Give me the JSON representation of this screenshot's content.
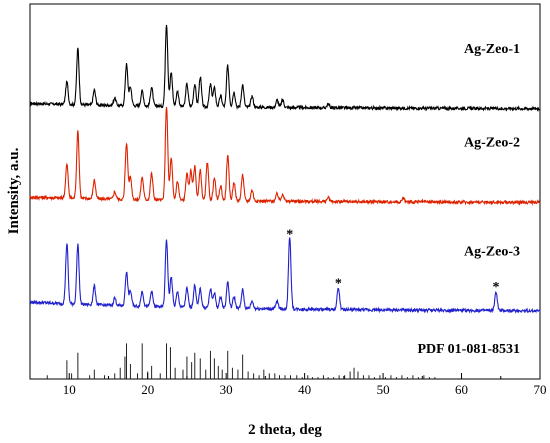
{
  "chart_data": {
    "type": "line",
    "xlabel": "2 theta, deg",
    "ylabel": "Intensity, a.u.",
    "xlim": [
      5,
      70
    ],
    "x_ticks": [
      10,
      20,
      30,
      40,
      50,
      60,
      70
    ],
    "x_tick_labels": [
      "10",
      "20",
      "30",
      "40",
      "50",
      "60",
      "70"
    ],
    "y_ticks_shown": false,
    "grid": false,
    "series": [
      {
        "name": "Ag-Zeo-1",
        "color": "#000000",
        "offset": 0.72,
        "baseline": 0.015,
        "peaks": [
          [
            9.7,
            0.06
          ],
          [
            11.1,
            0.15
          ],
          [
            13.2,
            0.04
          ],
          [
            15.8,
            0.02
          ],
          [
            17.3,
            0.11
          ],
          [
            17.8,
            0.05
          ],
          [
            19.3,
            0.04
          ],
          [
            20.5,
            0.05
          ],
          [
            22.4,
            0.22
          ],
          [
            23.0,
            0.09
          ],
          [
            23.8,
            0.04
          ],
          [
            25.0,
            0.06
          ],
          [
            26.0,
            0.06
          ],
          [
            26.7,
            0.08
          ],
          [
            28.0,
            0.06
          ],
          [
            28.5,
            0.05
          ],
          [
            29.3,
            0.03
          ],
          [
            30.2,
            0.11
          ],
          [
            31.0,
            0.04
          ],
          [
            32.1,
            0.06
          ],
          [
            33.3,
            0.03
          ],
          [
            36.5,
            0.02
          ],
          [
            37.2,
            0.02
          ],
          [
            43.0,
            0.01
          ]
        ]
      },
      {
        "name": "Ag-Zeo-2",
        "color": "#dd2200",
        "offset": 0.47,
        "baseline": 0.015,
        "peaks": [
          [
            9.7,
            0.09
          ],
          [
            11.1,
            0.18
          ],
          [
            13.2,
            0.05
          ],
          [
            15.8,
            0.02
          ],
          [
            17.3,
            0.15
          ],
          [
            17.8,
            0.06
          ],
          [
            19.3,
            0.06
          ],
          [
            20.5,
            0.07
          ],
          [
            22.4,
            0.25
          ],
          [
            23.0,
            0.11
          ],
          [
            23.8,
            0.05
          ],
          [
            25.0,
            0.07
          ],
          [
            25.5,
            0.08
          ],
          [
            26.0,
            0.09
          ],
          [
            26.7,
            0.08
          ],
          [
            27.6,
            0.1
          ],
          [
            28.5,
            0.06
          ],
          [
            29.3,
            0.04
          ],
          [
            30.2,
            0.12
          ],
          [
            31.0,
            0.05
          ],
          [
            32.1,
            0.07
          ],
          [
            33.3,
            0.03
          ],
          [
            36.5,
            0.02
          ],
          [
            37.2,
            0.02
          ],
          [
            43.0,
            0.01
          ],
          [
            52.6,
            0.01
          ]
        ]
      },
      {
        "name": "Ag-Zeo-3",
        "color": "#2020cc",
        "offset": 0.18,
        "baseline": 0.025,
        "peaks": [
          [
            9.7,
            0.16
          ],
          [
            11.1,
            0.16
          ],
          [
            13.2,
            0.05
          ],
          [
            15.8,
            0.02
          ],
          [
            17.3,
            0.09
          ],
          [
            17.8,
            0.04
          ],
          [
            19.3,
            0.04
          ],
          [
            20.5,
            0.04
          ],
          [
            22.4,
            0.18
          ],
          [
            23.0,
            0.08
          ],
          [
            23.8,
            0.04
          ],
          [
            25.0,
            0.05
          ],
          [
            26.0,
            0.06
          ],
          [
            26.7,
            0.05
          ],
          [
            28.0,
            0.05
          ],
          [
            28.5,
            0.04
          ],
          [
            29.3,
            0.03
          ],
          [
            30.2,
            0.07
          ],
          [
            31.0,
            0.03
          ],
          [
            32.1,
            0.05
          ],
          [
            33.3,
            0.02
          ],
          [
            36.5,
            0.02
          ],
          [
            38.1,
            0.19
          ],
          [
            44.3,
            0.06
          ],
          [
            64.4,
            0.05
          ]
        ]
      }
    ],
    "reference": {
      "name": "PDF 01-081-8531",
      "lines": [
        [
          7.2,
          0.02
        ],
        [
          9.7,
          0.1
        ],
        [
          10.3,
          0.03
        ],
        [
          11.1,
          0.14
        ],
        [
          12.6,
          0.02
        ],
        [
          13.2,
          0.05
        ],
        [
          14.5,
          0.02
        ],
        [
          15.8,
          0.03
        ],
        [
          16.5,
          0.06
        ],
        [
          17.1,
          0.12
        ],
        [
          17.3,
          0.19
        ],
        [
          17.8,
          0.08
        ],
        [
          18.7,
          0.03
        ],
        [
          19.3,
          0.19
        ],
        [
          20.0,
          0.04
        ],
        [
          20.5,
          0.07
        ],
        [
          21.6,
          0.03
        ],
        [
          22.4,
          0.19
        ],
        [
          22.9,
          0.17
        ],
        [
          23.5,
          0.06
        ],
        [
          24.5,
          0.05
        ],
        [
          25.0,
          0.12
        ],
        [
          25.6,
          0.09
        ],
        [
          26.0,
          0.14
        ],
        [
          26.7,
          0.11
        ],
        [
          27.4,
          0.05
        ],
        [
          28.0,
          0.15
        ],
        [
          28.5,
          0.11
        ],
        [
          29.0,
          0.07
        ],
        [
          29.5,
          0.05
        ],
        [
          30.2,
          0.15
        ],
        [
          30.8,
          0.06
        ],
        [
          31.5,
          0.05
        ],
        [
          32.1,
          0.13
        ],
        [
          32.8,
          0.04
        ],
        [
          33.5,
          0.03
        ],
        [
          34.2,
          0.02
        ],
        [
          34.8,
          0.05
        ],
        [
          35.5,
          0.03
        ],
        [
          36.2,
          0.03
        ],
        [
          36.8,
          0.02
        ],
        [
          37.5,
          0.02
        ],
        [
          38.2,
          0.02
        ],
        [
          39.0,
          0.02
        ],
        [
          39.7,
          0.01
        ],
        [
          40.4,
          0.02
        ],
        [
          41.0,
          0.01
        ],
        [
          41.7,
          0.01
        ],
        [
          42.4,
          0.02
        ],
        [
          43.0,
          0.01
        ],
        [
          43.7,
          0.01
        ],
        [
          44.4,
          0.02
        ],
        [
          45.1,
          0.02
        ],
        [
          45.8,
          0.04
        ],
        [
          46.3,
          0.06
        ],
        [
          46.8,
          0.04
        ],
        [
          47.5,
          0.02
        ],
        [
          48.2,
          0.02
        ],
        [
          48.9,
          0.01
        ],
        [
          49.6,
          0.02
        ],
        [
          50.3,
          0.01
        ],
        [
          51.0,
          0.02
        ],
        [
          51.7,
          0.01
        ],
        [
          52.4,
          0.02
        ],
        [
          53.1,
          0.01
        ],
        [
          53.8,
          0.02
        ],
        [
          54.5,
          0.01
        ],
        [
          55.2,
          0.02
        ],
        [
          55.9,
          0.01
        ],
        [
          56.6,
          0.01
        ]
      ]
    },
    "markers": [
      {
        "label": "*",
        "x": 38.1,
        "series": "Ag-Zeo-3"
      },
      {
        "label": "*",
        "x": 44.3,
        "series": "Ag-Zeo-3"
      },
      {
        "label": "*",
        "x": 64.4,
        "series": "Ag-Zeo-3"
      }
    ]
  }
}
